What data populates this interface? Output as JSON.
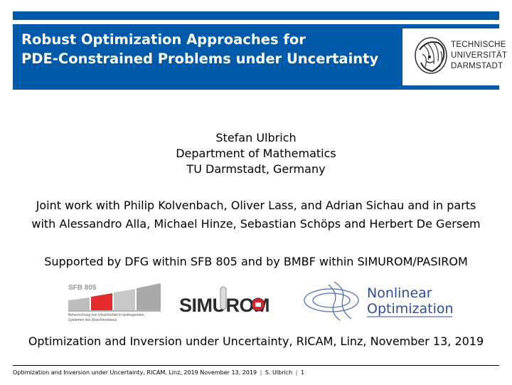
{
  "slide": {
    "title_line1": "Robust Optimization Approaches for",
    "title_line2": "PDE-Constrained Problems under Uncertainty",
    "logo": {
      "line1": "TECHNISCHE",
      "line2": "UNIVERSITÄT",
      "line3": "DARMSTADT"
    },
    "author": {
      "name": "Stefan Ulbrich",
      "department": "Department of Mathematics",
      "institution": "TU Darmstadt, Germany"
    },
    "joint_work_line1": "Joint work with Philip Kolvenbach, Oliver Lass, and Adrian Sichau and in parts",
    "joint_work_line2": "with Alessandro Alla, Michael Hinze, Sebastian Schöps and Herbert De Gersem",
    "support": "Supported by DFG within SFB 805 and by BMBF within SIMUROM/PASIROM",
    "sponsor_logos": {
      "sfb": {
        "name": "SFB 805",
        "caption_line1": "Beherrschung von Unsicherheit in lasttragenden",
        "caption_line2": "Systemen des Maschinenbaus"
      },
      "simurom": "SIMUROM",
      "nonlinear_line1": "Nonlinear",
      "nonlinear_line2": "Optimization"
    },
    "event": "Optimization and Inversion under Uncertainty, RICAM, Linz, November 13, 2019",
    "footer": {
      "event": "Optimization and Inversion under Uncertainty, RICAM, Linz, 2019 November 13, 2019",
      "author": "S. Ulbrich",
      "page": "1"
    }
  }
}
